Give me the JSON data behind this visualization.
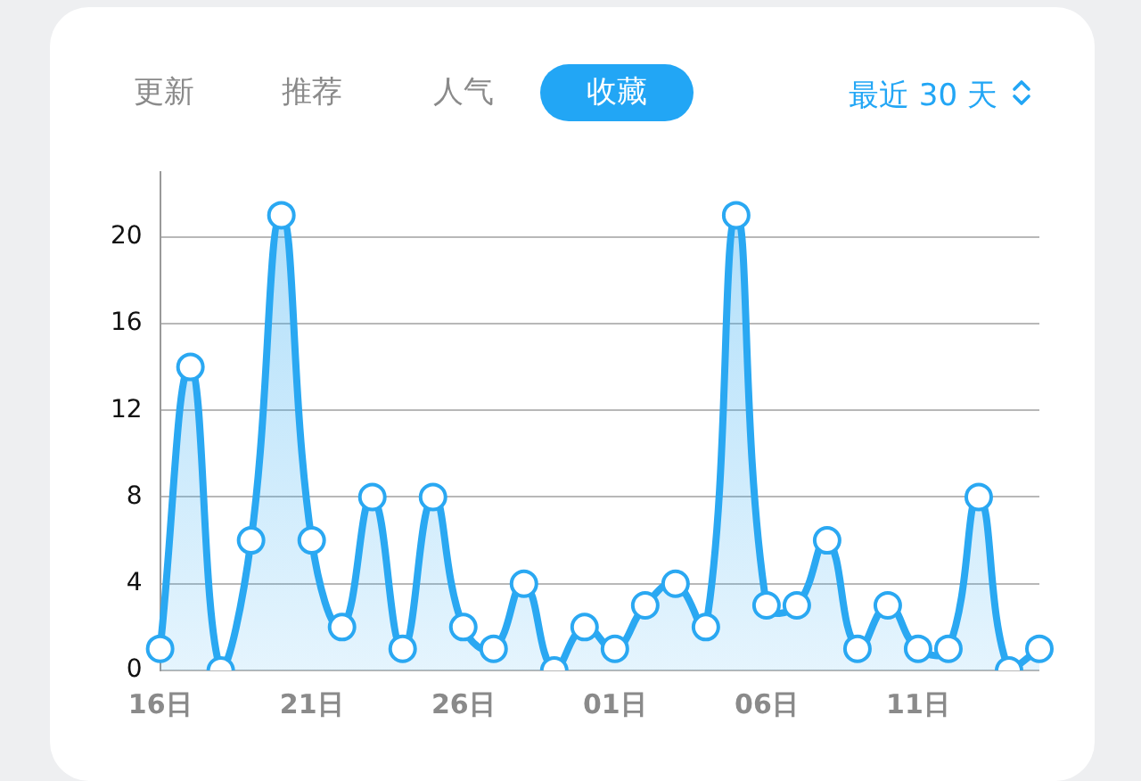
{
  "chart_data": {
    "type": "area",
    "categories": [
      "16日",
      null,
      null,
      null,
      null,
      "21日",
      null,
      null,
      null,
      null,
      "26日",
      null,
      null,
      null,
      null,
      "01日",
      null,
      null,
      null,
      null,
      "06日",
      null,
      null,
      null,
      null,
      "11日",
      null,
      null,
      null,
      null
    ],
    "series": [
      {
        "color": "#2aa8f2",
        "values": [
          1,
          14,
          0,
          6,
          21,
          6,
          2,
          8,
          1,
          8,
          2,
          1,
          4,
          0,
          2,
          1,
          3,
          4,
          2,
          21,
          3,
          3,
          6,
          1,
          3,
          1,
          1,
          8,
          0,
          1
        ]
      }
    ],
    "ylim": [
      0,
      23
    ],
    "yticks": [
      0,
      4,
      8,
      12,
      16,
      20
    ],
    "grid": "y",
    "legend": false,
    "marker": "circle",
    "line_style": "solid",
    "annotations": [
      "更新",
      "推荐",
      "人气",
      "收藏",
      "最近 30 天"
    ]
  }
}
